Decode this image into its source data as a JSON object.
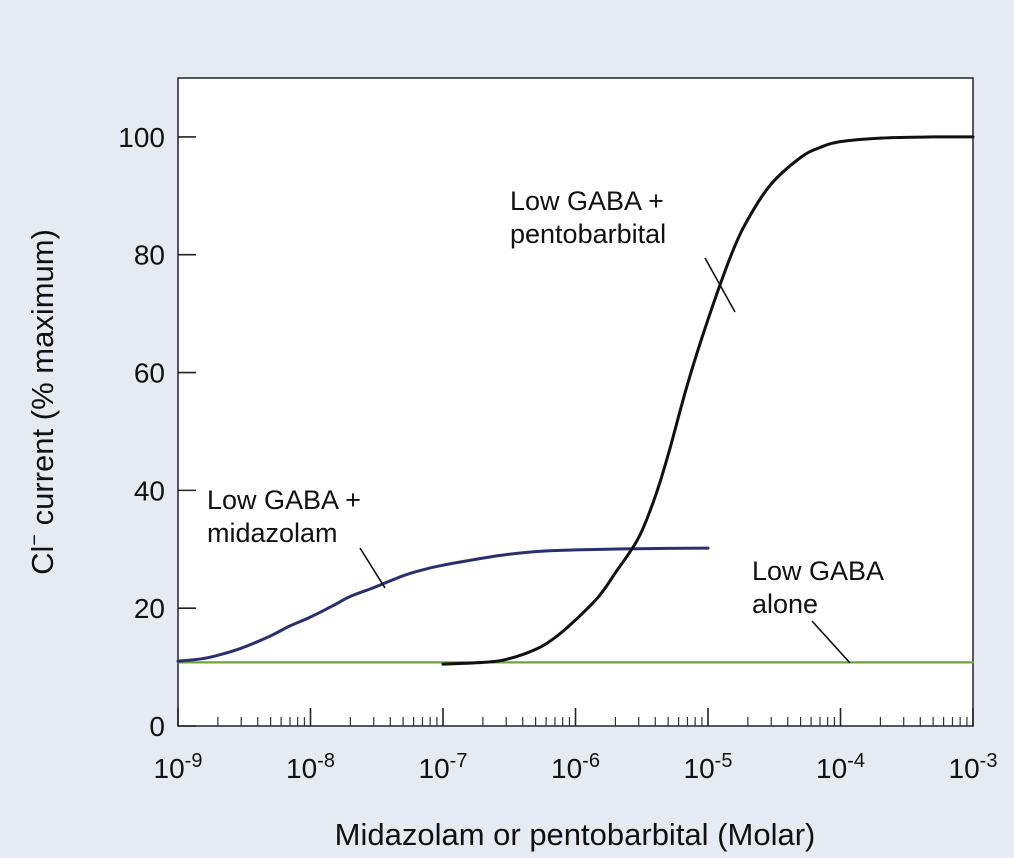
{
  "chart_data": {
    "type": "line",
    "xlabel": "Midazolam or pentobarbital (Molar)",
    "ylabel_main": "Cl",
    "ylabel_sup": "−",
    "ylabel_rest": " current (% maximum)",
    "x_scale": "log",
    "xlim": [
      1e-09,
      0.001
    ],
    "ylim": [
      0,
      110
    ],
    "x_ticks": [
      {
        "value": 1e-09,
        "base": "10",
        "exp": "-9"
      },
      {
        "value": 1e-08,
        "base": "10",
        "exp": "-8"
      },
      {
        "value": 1e-07,
        "base": "10",
        "exp": "-7"
      },
      {
        "value": 1e-06,
        "base": "10",
        "exp": "-6"
      },
      {
        "value": 1e-05,
        "base": "10",
        "exp": "-5"
      },
      {
        "value": 0.0001,
        "base": "10",
        "exp": "-4"
      },
      {
        "value": 0.001,
        "base": "10",
        "exp": "-3"
      }
    ],
    "y_ticks": [
      "0",
      "20",
      "40",
      "60",
      "80",
      "100"
    ],
    "grid": false,
    "series": [
      {
        "name": "Low GABA + pentobarbital",
        "color": "#111111",
        "x": [
          1e-07,
          2e-07,
          3e-07,
          5e-07,
          7e-07,
          1e-06,
          1.5e-06,
          2e-06,
          3e-06,
          4e-06,
          5e-06,
          7e-06,
          1e-05,
          1.5e-05,
          2e-05,
          3e-05,
          5e-05,
          7e-05,
          0.0001,
          0.0002,
          0.0005,
          0.001
        ],
        "values": [
          10.5,
          10.8,
          11.3,
          13,
          15,
          18,
          22,
          26,
          32,
          39,
          46,
          58,
          69,
          80,
          86,
          92,
          96.5,
          98.2,
          99.2,
          99.8,
          100,
          100
        ]
      },
      {
        "name": "Low GABA + midazolam",
        "color": "#2b2f6e",
        "x": [
          1e-09,
          1.5e-09,
          2e-09,
          3e-09,
          5e-09,
          7e-09,
          1e-08,
          1.5e-08,
          2e-08,
          3e-08,
          5e-08,
          7e-08,
          1e-07,
          2e-07,
          3e-07,
          5e-07,
          1e-06,
          3e-06,
          1e-05
        ],
        "values": [
          11,
          11.4,
          12,
          13.2,
          15.3,
          17,
          18.5,
          20.5,
          22,
          23.5,
          25.5,
          26.5,
          27.3,
          28.5,
          29.1,
          29.6,
          29.9,
          30.1,
          30.2
        ]
      },
      {
        "name": "Low GABA alone",
        "color": "#6ea23c",
        "x": [
          1e-09,
          0.001
        ],
        "values": [
          10.8,
          10.8
        ]
      }
    ],
    "annotations": [
      {
        "lines": [
          "Low GABA +",
          "pentobarbital"
        ],
        "series": "Low GABA + pentobarbital"
      },
      {
        "lines": [
          "Low GABA +",
          "midazolam"
        ],
        "series": "Low GABA + midazolam"
      },
      {
        "lines": [
          "Low GABA",
          "alone"
        ],
        "series": "Low GABA alone"
      }
    ]
  }
}
